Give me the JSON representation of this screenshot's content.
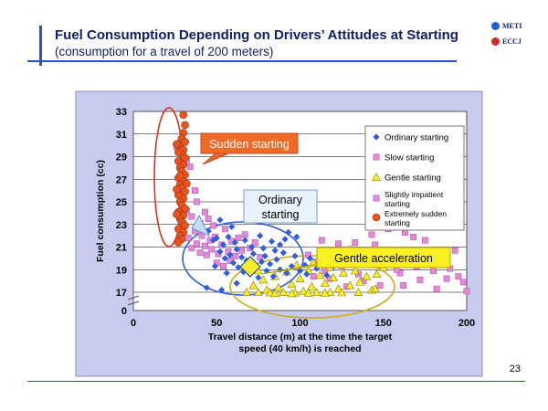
{
  "header": {
    "title": "Fuel Consumption Depending on Drivers’ Attitudes at Starting",
    "subtitle": "(consumption for a travel of 200 meters)"
  },
  "logos": [
    {
      "text": "METI"
    },
    {
      "text": "ECCJ"
    }
  ],
  "page_number": "23",
  "chart_data": {
    "type": "scatter",
    "xlabel": "Travel distance (m) at the time the target speed (40 km/h) is reached",
    "xlabel_lines": [
      "Travel distance (m) at the time the target",
      "speed (40 km/h) is reached"
    ],
    "ylabel": "Fuel consumption (cc)",
    "xlim": [
      0,
      200
    ],
    "ylim": [
      0,
      33
    ],
    "y_axis_break": true,
    "x_ticks": [
      0,
      50,
      100,
      150,
      200
    ],
    "y_ticks": [
      0,
      17,
      19,
      21,
      23,
      25,
      27,
      29,
      31,
      33
    ],
    "grid": true,
    "legend_position": "right",
    "colors": {
      "plot_bg": "#ffffff",
      "frame_bg": "#c9cbee",
      "ordinary": "#2e5de0",
      "slow": "#e28ad6",
      "gentle": "#f5ee2a",
      "slightly_impatient": "#e08adc",
      "extremely_sudden": "#e8531e"
    },
    "series": [
      {
        "name": "Ordinary starting",
        "marker": "diamond",
        "color": "#2e5de0",
        "points": [
          [
            45,
            22.4
          ],
          [
            48,
            21.6
          ],
          [
            50,
            21.8
          ],
          [
            52,
            20.6
          ],
          [
            54,
            21.2
          ],
          [
            55,
            20.0
          ],
          [
            57,
            21.9
          ],
          [
            58,
            20.3
          ],
          [
            60,
            19.6
          ],
          [
            61,
            21.4
          ],
          [
            62,
            20.8
          ],
          [
            63,
            19.2
          ],
          [
            65,
            20.1
          ],
          [
            66,
            18.8
          ],
          [
            68,
            19.8
          ],
          [
            70,
            18.6
          ],
          [
            72,
            20.4
          ],
          [
            73,
            19.1
          ],
          [
            75,
            18.3
          ],
          [
            77,
            19.7
          ],
          [
            78,
            20.9
          ],
          [
            80,
            18.9
          ],
          [
            82,
            19.5
          ],
          [
            84,
            18.4
          ],
          [
            86,
            19.9
          ],
          [
            88,
            19.0
          ],
          [
            90,
            20.5
          ],
          [
            92,
            18.7
          ],
          [
            95,
            19.3
          ],
          [
            97,
            20.2
          ],
          [
            100,
            18.9
          ],
          [
            103,
            19.4
          ],
          [
            106,
            20.0
          ],
          [
            110,
            19.1
          ],
          [
            113,
            19.6
          ],
          [
            116,
            18.5
          ],
          [
            120,
            19.3
          ],
          [
            76,
            22.0
          ],
          [
            83,
            21.5
          ],
          [
            88,
            21.2
          ],
          [
            93,
            22.3
          ],
          [
            59,
            22.8
          ],
          [
            52,
            23.4
          ],
          [
            49,
            19.3
          ],
          [
            56,
            18.7
          ],
          [
            44,
            17.4
          ],
          [
            53,
            17.2
          ],
          [
            62,
            17.8
          ],
          [
            67,
            21.6
          ],
          [
            71,
            21.0
          ],
          [
            79,
            20.2
          ],
          [
            85,
            20.7
          ],
          [
            91,
            21.7
          ],
          [
            98,
            21.9
          ],
          [
            104,
            18.6
          ]
        ]
      },
      {
        "name": "Slow starting",
        "marker": "square",
        "color": "#e28ad6",
        "points": [
          [
            105,
            20.3
          ],
          [
            110,
            19.7
          ],
          [
            115,
            18.9
          ],
          [
            120,
            20.5
          ],
          [
            125,
            19.2
          ],
          [
            130,
            20.8
          ],
          [
            135,
            18.6
          ],
          [
            140,
            19.9
          ],
          [
            145,
            21.2
          ],
          [
            150,
            19.5
          ],
          [
            155,
            20.1
          ],
          [
            160,
            18.7
          ],
          [
            165,
            20.4
          ],
          [
            170,
            19.3
          ],
          [
            175,
            21.6
          ],
          [
            180,
            18.9
          ],
          [
            185,
            20.0
          ],
          [
            190,
            19.1
          ],
          [
            195,
            18.4
          ],
          [
            198,
            17.9
          ],
          [
            200,
            17.1
          ],
          [
            188,
            18.2
          ],
          [
            193,
            20.7
          ],
          [
            178,
            20.3
          ],
          [
            168,
            21.9
          ],
          [
            158,
            19.0
          ],
          [
            148,
            17.6
          ],
          [
            138,
            18.0
          ],
          [
            128,
            17.5
          ],
          [
            118,
            18.2
          ],
          [
            162,
            17.6
          ],
          [
            172,
            18.1
          ],
          [
            182,
            17.3
          ],
          [
            133,
            21.4
          ],
          [
            143,
            22.1
          ],
          [
            153,
            22.6
          ],
          [
            163,
            22.3
          ],
          [
            123,
            21.3
          ],
          [
            113,
            21.6
          ],
          [
            108,
            18.4
          ]
        ]
      },
      {
        "name": "Gentle starting",
        "marker": "triangle",
        "color": "#f5ee2a",
        "points": [
          [
            68,
            17.0
          ],
          [
            72,
            17.6
          ],
          [
            75,
            16.8
          ],
          [
            78,
            18.1
          ],
          [
            80,
            17.2
          ],
          [
            82,
            16.6
          ],
          [
            85,
            18.4
          ],
          [
            87,
            17.4
          ],
          [
            90,
            16.9
          ],
          [
            92,
            18.8
          ],
          [
            95,
            17.7
          ],
          [
            97,
            16.4
          ],
          [
            100,
            18.2
          ],
          [
            102,
            17.1
          ],
          [
            105,
            18.9
          ],
          [
            107,
            17.5
          ],
          [
            110,
            16.8
          ],
          [
            112,
            18.5
          ],
          [
            115,
            17.8
          ],
          [
            118,
            16.9
          ],
          [
            120,
            18.3
          ],
          [
            123,
            17.3
          ],
          [
            126,
            18.7
          ],
          [
            130,
            17.6
          ],
          [
            133,
            18.9
          ],
          [
            136,
            17.9
          ],
          [
            140,
            18.4
          ],
          [
            143,
            17.2
          ],
          [
            146,
            18.6
          ],
          [
            150,
            19.2
          ],
          [
            75,
            18.9
          ],
          [
            85,
            15.9
          ],
          [
            95,
            15.8
          ],
          [
            105,
            16.2
          ],
          [
            115,
            16.3
          ],
          [
            125,
            16.6
          ],
          [
            135,
            16.9
          ],
          [
            145,
            17.3
          ],
          [
            98,
            19.4
          ],
          [
            108,
            19.6
          ],
          [
            118,
            19.2
          ],
          [
            128,
            19.8
          ]
        ]
      },
      {
        "name": "Slightly impatient starting",
        "marker": "square",
        "color": "#e08adc",
        "points": [
          [
            33,
            21.8
          ],
          [
            35,
            20.9
          ],
          [
            37,
            22.4
          ],
          [
            38,
            21.3
          ],
          [
            40,
            20.5
          ],
          [
            41,
            22.0
          ],
          [
            43,
            21.1
          ],
          [
            44,
            20.3
          ],
          [
            46,
            21.6
          ],
          [
            47,
            20.8
          ],
          [
            49,
            21.9
          ],
          [
            51,
            20.4
          ],
          [
            53,
            21.2
          ],
          [
            55,
            22.6
          ],
          [
            57,
            20.6
          ],
          [
            59,
            21.5
          ],
          [
            61,
            20.2
          ],
          [
            63,
            21.8
          ],
          [
            65,
            20.7
          ],
          [
            67,
            22.1
          ],
          [
            70,
            20.9
          ],
          [
            73,
            21.4
          ],
          [
            76,
            20.1
          ],
          [
            40,
            23.1
          ],
          [
            43,
            24.1
          ],
          [
            45,
            23.5
          ],
          [
            48,
            22.9
          ],
          [
            26,
            29.9
          ],
          [
            28,
            30.2
          ],
          [
            30,
            29.2
          ],
          [
            32,
            28.7
          ],
          [
            34,
            28.1
          ],
          [
            38,
            25.0
          ],
          [
            30,
            23.1
          ],
          [
            35,
            23.7
          ],
          [
            37,
            26.0
          ],
          [
            32,
            24.2
          ],
          [
            50,
            19.6
          ],
          [
            54,
            19.3
          ],
          [
            58,
            19.8
          ]
        ]
      },
      {
        "name": "Extremely sudden starting",
        "marker": "circle",
        "color": "#e8531e",
        "points": [
          [
            30,
            32.7
          ],
          [
            31,
            31.8
          ],
          [
            30,
            31.1
          ],
          [
            29,
            30.6
          ],
          [
            31,
            30.3
          ],
          [
            28,
            29.9
          ],
          [
            30,
            29.6
          ],
          [
            29,
            29.2
          ],
          [
            31,
            28.9
          ],
          [
            27,
            28.6
          ],
          [
            30,
            28.3
          ],
          [
            28,
            28.0
          ],
          [
            29,
            27.7
          ],
          [
            31,
            27.4
          ],
          [
            27,
            27.1
          ],
          [
            30,
            26.8
          ],
          [
            28,
            26.5
          ],
          [
            29,
            26.2
          ],
          [
            31,
            25.9
          ],
          [
            27,
            25.6
          ],
          [
            30,
            25.3
          ],
          [
            28,
            25.0
          ],
          [
            29,
            24.7
          ],
          [
            31,
            24.4
          ],
          [
            27,
            24.1
          ],
          [
            30,
            23.8
          ],
          [
            28,
            23.5
          ],
          [
            29,
            23.2
          ],
          [
            31,
            22.9
          ],
          [
            27,
            22.6
          ],
          [
            30,
            22.3
          ],
          [
            28,
            22.0
          ],
          [
            29,
            21.7
          ],
          [
            27,
            21.4
          ],
          [
            26,
            30.1
          ],
          [
            27,
            29.4
          ],
          [
            28,
            27.3
          ],
          [
            26,
            26.1
          ],
          [
            32,
            26.6
          ],
          [
            26,
            23.9
          ]
        ]
      }
    ],
    "annotations": [
      {
        "text": "Sudden starting"
      },
      {
        "text_lines": [
          "Ordinary",
          "starting"
        ]
      },
      {
        "text": "Gentle acceleration"
      }
    ],
    "legend_entries": [
      {
        "lines": [
          "Ordinary starting"
        ]
      },
      {
        "lines": [
          "Slow starting"
        ]
      },
      {
        "lines": [
          "Gentle starting"
        ]
      },
      {
        "lines": [
          "Slightly impatient",
          "starting"
        ]
      },
      {
        "lines": [
          "Extremely sudden",
          "starting"
        ]
      }
    ]
  }
}
